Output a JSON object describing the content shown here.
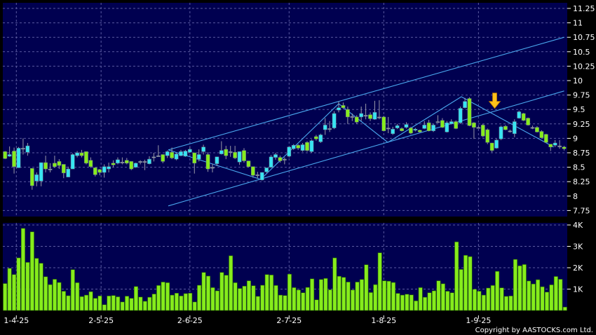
{
  "chart_data": [
    {
      "type": "candlestick",
      "panel": "price",
      "colors": {
        "up": "#38e4f2",
        "down": "#86ec1c",
        "unchanged": "#9a9aa8",
        "background": "#000050",
        "grid": "#5a5aa0",
        "trendline": "#4aa8ee",
        "marker": "#ffc21a"
      },
      "y_ticks": [
        "11.25",
        "11",
        "10.75",
        "10.5",
        "10.25",
        "10",
        "9.75",
        "9.5",
        "9.25",
        "9",
        "8.75",
        "8.5",
        "8.25",
        "8",
        "7.75"
      ],
      "ylim": [
        7.75,
        11.25
      ],
      "grid": true,
      "x_ticks": [
        {
          "label": "1-4-25",
          "index": 2.5
        },
        {
          "label": "2-5-25",
          "index": 21.3
        },
        {
          "label": "2-6-25",
          "index": 41
        },
        {
          "label": "2-7-25",
          "index": 63
        },
        {
          "label": "1-8-25",
          "index": 84
        },
        {
          "label": "1-9-25",
          "index": 105
        }
      ],
      "ohlc": [
        [
          8.77,
          8.78,
          8.64,
          8.65
        ],
        [
          8.69,
          8.86,
          8.68,
          8.72
        ],
        [
          8.78,
          8.84,
          8.39,
          8.51
        ],
        [
          8.49,
          8.85,
          8.49,
          8.83
        ],
        [
          8.83,
          9.0,
          8.72,
          8.83
        ],
        [
          8.76,
          8.92,
          8.7,
          8.87
        ],
        [
          8.48,
          8.48,
          8.11,
          8.18
        ],
        [
          8.26,
          8.41,
          8.17,
          8.37
        ],
        [
          8.26,
          8.58,
          8.17,
          8.58
        ],
        [
          8.58,
          8.7,
          8.41,
          8.47
        ],
        [
          8.47,
          8.57,
          8.41,
          8.47
        ],
        [
          8.57,
          8.7,
          8.49,
          8.51
        ],
        [
          8.6,
          8.64,
          8.47,
          8.53
        ],
        [
          8.55,
          8.55,
          8.31,
          8.4
        ],
        [
          8.33,
          8.51,
          8.33,
          8.47
        ],
        [
          8.47,
          8.74,
          8.47,
          8.72
        ],
        [
          8.7,
          8.78,
          8.67,
          8.75
        ],
        [
          8.75,
          8.8,
          8.67,
          8.7
        ],
        [
          8.77,
          8.77,
          8.55,
          8.57
        ],
        [
          8.62,
          8.67,
          8.49,
          8.51
        ],
        [
          8.49,
          8.5,
          8.34,
          8.37
        ],
        [
          8.46,
          8.47,
          8.36,
          8.41
        ],
        [
          8.41,
          8.55,
          8.32,
          8.51
        ],
        [
          8.47,
          8.58,
          8.41,
          8.51
        ],
        [
          8.57,
          8.62,
          8.5,
          8.54
        ],
        [
          8.57,
          8.67,
          8.55,
          8.63
        ],
        [
          8.59,
          8.67,
          8.55,
          8.59
        ],
        [
          8.62,
          8.66,
          8.55,
          8.57
        ],
        [
          8.6,
          8.6,
          8.45,
          8.47
        ],
        [
          8.5,
          8.58,
          8.49,
          8.57
        ],
        [
          8.6,
          8.62,
          8.55,
          8.6
        ],
        [
          8.6,
          8.63,
          8.45,
          8.6
        ],
        [
          8.56,
          8.69,
          8.55,
          8.64
        ],
        [
          8.68,
          8.75,
          8.6,
          8.68
        ],
        [
          8.7,
          8.88,
          8.68,
          8.7
        ],
        [
          8.72,
          8.72,
          8.57,
          8.6
        ],
        [
          8.7,
          8.79,
          8.66,
          8.77
        ],
        [
          8.76,
          8.84,
          8.64,
          8.66
        ],
        [
          8.64,
          8.75,
          8.62,
          8.73
        ],
        [
          8.7,
          8.8,
          8.69,
          8.77
        ],
        [
          8.69,
          8.8,
          8.68,
          8.78
        ],
        [
          8.76,
          8.84,
          8.75,
          8.81
        ],
        [
          8.75,
          8.75,
          8.39,
          8.57
        ],
        [
          8.64,
          8.81,
          8.6,
          8.72
        ],
        [
          8.77,
          8.89,
          8.72,
          8.85
        ],
        [
          8.72,
          8.76,
          8.42,
          8.47
        ],
        [
          8.5,
          8.56,
          8.41,
          8.5
        ],
        [
          8.56,
          8.68,
          8.52,
          8.68
        ],
        [
          8.73,
          8.95,
          8.72,
          8.79
        ],
        [
          8.81,
          8.87,
          8.64,
          8.7
        ],
        [
          8.77,
          8.87,
          8.68,
          8.77
        ],
        [
          8.76,
          8.87,
          8.64,
          8.66
        ],
        [
          8.59,
          8.77,
          8.54,
          8.77
        ],
        [
          8.79,
          8.83,
          8.58,
          8.61
        ],
        [
          8.61,
          8.61,
          8.5,
          8.51
        ],
        [
          8.51,
          8.51,
          8.32,
          8.36
        ],
        [
          8.37,
          8.42,
          8.31,
          8.37
        ],
        [
          8.28,
          8.41,
          8.27,
          8.41
        ],
        [
          8.42,
          8.49,
          8.4,
          8.49
        ],
        [
          8.5,
          8.71,
          8.49,
          8.68
        ],
        [
          8.67,
          8.75,
          8.63,
          8.72
        ],
        [
          8.67,
          8.7,
          8.58,
          8.61
        ],
        [
          8.64,
          8.67,
          8.55,
          8.64
        ],
        [
          8.69,
          8.86,
          8.67,
          8.85
        ],
        [
          8.82,
          8.9,
          8.8,
          8.88
        ],
        [
          8.88,
          8.9,
          8.8,
          8.83
        ],
        [
          8.79,
          8.92,
          8.77,
          8.89
        ],
        [
          8.93,
          8.95,
          8.77,
          8.79
        ],
        [
          8.77,
          8.98,
          8.75,
          8.96
        ],
        [
          9.03,
          9.06,
          8.96,
          8.99
        ],
        [
          8.94,
          9.08,
          8.92,
          9.06
        ],
        [
          9.15,
          9.35,
          9.06,
          9.23
        ],
        [
          9.17,
          9.3,
          9.11,
          9.17
        ],
        [
          9.18,
          9.47,
          9.16,
          9.43
        ],
        [
          9.49,
          9.64,
          9.45,
          9.53
        ],
        [
          9.57,
          9.62,
          9.51,
          9.53
        ],
        [
          9.5,
          9.55,
          9.25,
          9.37
        ],
        [
          9.38,
          9.43,
          9.3,
          9.38
        ],
        [
          9.37,
          9.4,
          9.25,
          9.28
        ],
        [
          9.37,
          9.55,
          9.3,
          9.43
        ],
        [
          9.4,
          9.6,
          9.33,
          9.4
        ],
        [
          9.41,
          9.45,
          9.3,
          9.34
        ],
        [
          9.33,
          9.65,
          9.32,
          9.45
        ],
        [
          9.37,
          9.66,
          9.33,
          9.37
        ],
        [
          9.37,
          9.39,
          9.12,
          9.13
        ],
        [
          9.18,
          9.37,
          9.09,
          9.18
        ],
        [
          9.08,
          9.2,
          9.06,
          9.16
        ],
        [
          9.18,
          9.25,
          9.16,
          9.22
        ],
        [
          9.17,
          9.19,
          9.12,
          9.13
        ],
        [
          9.19,
          9.28,
          9.17,
          9.24
        ],
        [
          9.18,
          9.2,
          9.07,
          9.09
        ],
        [
          9.14,
          9.18,
          9.12,
          9.16
        ],
        [
          9.14,
          9.15,
          9.1,
          9.11
        ],
        [
          9.17,
          9.3,
          9.16,
          9.23
        ],
        [
          9.27,
          9.32,
          9.12,
          9.13
        ],
        [
          9.13,
          9.25,
          9.11,
          9.23
        ],
        [
          9.29,
          9.4,
          9.27,
          9.29
        ],
        [
          9.31,
          9.35,
          9.18,
          9.19
        ],
        [
          9.11,
          9.3,
          9.1,
          9.27
        ],
        [
          9.25,
          9.33,
          9.24,
          9.29
        ],
        [
          9.29,
          9.31,
          9.16,
          9.17
        ],
        [
          9.27,
          9.55,
          9.25,
          9.52
        ],
        [
          9.53,
          9.7,
          9.52,
          9.64
        ],
        [
          9.69,
          9.71,
          9.21,
          9.22
        ],
        [
          9.27,
          9.28,
          8.99,
          9.19
        ],
        [
          9.19,
          9.21,
          9.17,
          9.19
        ],
        [
          9.23,
          9.25,
          9.02,
          9.04
        ],
        [
          9.15,
          9.17,
          8.9,
          8.93
        ],
        [
          8.92,
          8.92,
          8.76,
          8.79
        ],
        [
          8.83,
          8.99,
          8.82,
          8.97
        ],
        [
          8.99,
          9.22,
          8.97,
          9.2
        ],
        [
          9.21,
          9.23,
          9.14,
          9.15
        ],
        [
          9.13,
          9.15,
          9.1,
          9.13
        ],
        [
          9.08,
          9.33,
          9.02,
          9.29
        ],
        [
          9.35,
          9.48,
          9.34,
          9.46
        ],
        [
          9.43,
          9.44,
          9.3,
          9.31
        ],
        [
          9.35,
          9.36,
          9.22,
          9.23
        ],
        [
          9.19,
          9.22,
          9.16,
          9.19
        ],
        [
          9.19,
          9.21,
          9.1,
          9.11
        ],
        [
          9.12,
          9.14,
          9.0,
          9.01
        ],
        [
          9.07,
          9.08,
          8.92,
          8.93
        ],
        [
          8.9,
          8.9,
          8.78,
          8.85
        ],
        [
          8.88,
          8.97,
          8.85,
          8.92
        ],
        [
          8.87,
          8.97,
          8.82,
          8.87
        ],
        [
          8.85,
          8.87,
          8.79,
          8.82
        ]
      ],
      "trendlines": [
        {
          "name": "channel-upper",
          "points": [
            [
              36.2,
              8.8
            ],
            [
              124,
              10.75
            ]
          ]
        },
        {
          "name": "channel-lower",
          "points": [
            [
              36.2,
              7.83
            ],
            [
              124,
              9.82
            ]
          ]
        },
        {
          "name": "zigzag",
          "points": [
            [
              36.2,
              8.8
            ],
            [
              56.7,
              8.29
            ],
            [
              74,
              9.6
            ],
            [
              84.9,
              8.93
            ],
            [
              101.2,
              9.72
            ],
            [
              121.7,
              8.85
            ]
          ]
        }
      ],
      "markers": [
        {
          "type": "down-arrow",
          "index": 108.6,
          "price": 9.47
        }
      ]
    },
    {
      "type": "bar",
      "panel": "volume",
      "y_ticks": [
        "4K",
        "3K",
        "2K",
        "1K"
      ],
      "ylim": [
        0,
        4
      ],
      "unit": "K",
      "grid": true,
      "color": "#86ec1c",
      "values": [
        1.26,
        1.97,
        1.68,
        2.46,
        3.84,
        2.25,
        3.68,
        2.44,
        2.21,
        1.58,
        1.21,
        1.46,
        1.31,
        0.9,
        0.69,
        1.91,
        1.3,
        0.65,
        0.72,
        0.88,
        0.57,
        0.68,
        0.27,
        0.68,
        0.7,
        0.64,
        0.4,
        0.67,
        0.57,
        1.12,
        0.63,
        0.43,
        0.62,
        0.77,
        1.17,
        1.33,
        1.3,
        0.72,
        0.81,
        0.68,
        0.79,
        0.81,
        0.4,
        1.18,
        1.78,
        1.61,
        1.07,
        0.92,
        1.78,
        1.65,
        2.56,
        1.3,
        1.03,
        1.14,
        1.39,
        1.16,
        0.66,
        1.18,
        1.68,
        1.66,
        1.17,
        0.72,
        0.7,
        1.7,
        1.07,
        0.96,
        0.83,
        1.08,
        1.48,
        0.5,
        1.45,
        1.5,
        0.97,
        2.46,
        1.6,
        1.55,
        1.33,
        0.96,
        1.33,
        1.45,
        2.14,
        0.84,
        1.21,
        2.7,
        1.39,
        1.37,
        1.31,
        0.8,
        0.72,
        0.76,
        0.73,
        0.45,
        1.07,
        0.62,
        0.83,
        0.92,
        1.39,
        1.25,
        0.9,
        0.83,
        3.21,
        1.92,
        2.58,
        2.52,
        0.99,
        0.9,
        0.72,
        1.05,
        1.17,
        1.83,
        1.06,
        0.66,
        0.68,
        2.39,
        2.09,
        2.15,
        1.38,
        1.24,
        1.44,
        1.11,
        0.86,
        1.2,
        1.59,
        1.46,
        0.16
      ]
    }
  ],
  "footer": {
    "copyright": "Copyright by AASTOCKS.com Ltd."
  }
}
